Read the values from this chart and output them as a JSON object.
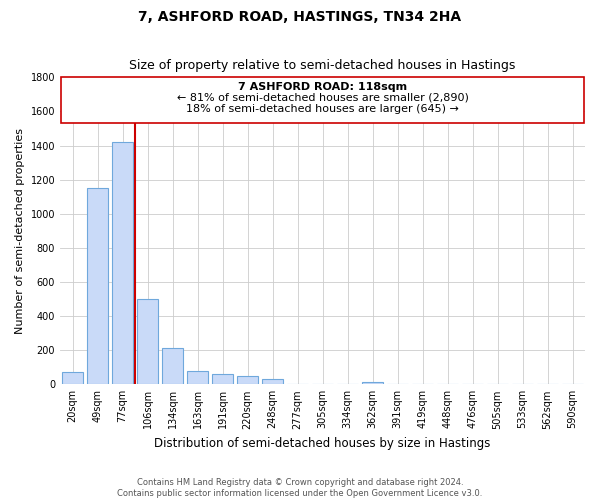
{
  "title": "7, ASHFORD ROAD, HASTINGS, TN34 2HA",
  "subtitle": "Size of property relative to semi-detached houses in Hastings",
  "xlabel": "Distribution of semi-detached houses by size in Hastings",
  "ylabel": "Number of semi-detached properties",
  "bar_labels": [
    "20sqm",
    "49sqm",
    "77sqm",
    "106sqm",
    "134sqm",
    "163sqm",
    "191sqm",
    "220sqm",
    "248sqm",
    "277sqm",
    "305sqm",
    "334sqm",
    "362sqm",
    "391sqm",
    "419sqm",
    "448sqm",
    "476sqm",
    "505sqm",
    "533sqm",
    "562sqm",
    "590sqm"
  ],
  "bar_values": [
    75,
    1150,
    1420,
    500,
    215,
    80,
    60,
    50,
    30,
    0,
    0,
    0,
    15,
    0,
    0,
    0,
    0,
    0,
    0,
    0,
    0
  ],
  "bar_color": "#c9daf8",
  "bar_edge_color": "#6fa8dc",
  "grid_color": "#cccccc",
  "annotation_box_color": "#ffffff",
  "annotation_box_edge": "#cc0000",
  "property_line_color": "#cc0000",
  "property_label": "7 ASHFORD ROAD: 118sqm",
  "pct_smaller": 81,
  "num_smaller": 2890,
  "pct_larger": 18,
  "num_larger": 645,
  "ylim": [
    0,
    1800
  ],
  "yticks": [
    0,
    200,
    400,
    600,
    800,
    1000,
    1200,
    1400,
    1600,
    1800
  ],
  "footer_line1": "Contains HM Land Registry data © Crown copyright and database right 2024.",
  "footer_line2": "Contains public sector information licensed under the Open Government Licence v3.0.",
  "bg_color": "#ffffff",
  "title_fontsize": 10,
  "subtitle_fontsize": 9,
  "xlabel_fontsize": 8.5,
  "ylabel_fontsize": 8,
  "tick_fontsize": 7,
  "annotation_fontsize": 8,
  "footer_fontsize": 6
}
